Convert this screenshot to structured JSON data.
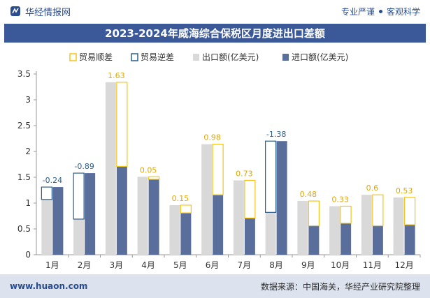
{
  "header": {
    "brand": "华经情报网",
    "slogan_left": "专业严谨",
    "slogan_right": "客观科学"
  },
  "footer": {
    "website": "www.huaon.com",
    "source": "数据来源：中国海关，华经产业研究院整理"
  },
  "colors": {
    "surplus": "#f5c518",
    "deficit": "#2c5e8c",
    "export": "#d9d9d9",
    "import": "#5a6e9c",
    "title_bg": "#3b5998"
  },
  "chart_data": {
    "type": "bar",
    "title": "2023-2024年威海综合保税区月度进出口差额",
    "categories": [
      "1月",
      "2月",
      "3月",
      "4月",
      "5月",
      "6月",
      "7月",
      "8月",
      "9月",
      "10月",
      "11月",
      "12月"
    ],
    "series": [
      {
        "name": "出口额(亿美元)",
        "values": [
          1.07,
          0.69,
          3.34,
          1.51,
          0.96,
          2.14,
          1.44,
          0.82,
          1.04,
          0.94,
          1.16,
          1.11
        ]
      },
      {
        "name": "进口额(亿美元)",
        "values": [
          1.31,
          1.58,
          1.71,
          1.46,
          0.81,
          1.16,
          0.71,
          2.2,
          0.56,
          0.61,
          0.56,
          0.58
        ]
      }
    ],
    "balance": {
      "values": [
        -0.24,
        -0.89,
        1.63,
        0.05,
        0.15,
        0.98,
        0.73,
        -1.38,
        0.48,
        0.33,
        0.6,
        0.53
      ],
      "labels": [
        "-0.24",
        "-0.89",
        "1.63",
        "0.05",
        "0.15",
        "0.98",
        "0.73",
        "-1.38",
        "0.48",
        "0.33",
        "0.6",
        "0.53"
      ]
    },
    "legend": [
      "贸易顺差",
      "贸易逆差",
      "出口额(亿美元)",
      "进口额(亿美元)"
    ],
    "legend_position": "top",
    "yticks": [
      "0",
      "0.5",
      "1",
      "1.5",
      "2",
      "2.5",
      "3",
      "3.5"
    ],
    "ylim": [
      0,
      3.5
    ],
    "grid": false
  }
}
